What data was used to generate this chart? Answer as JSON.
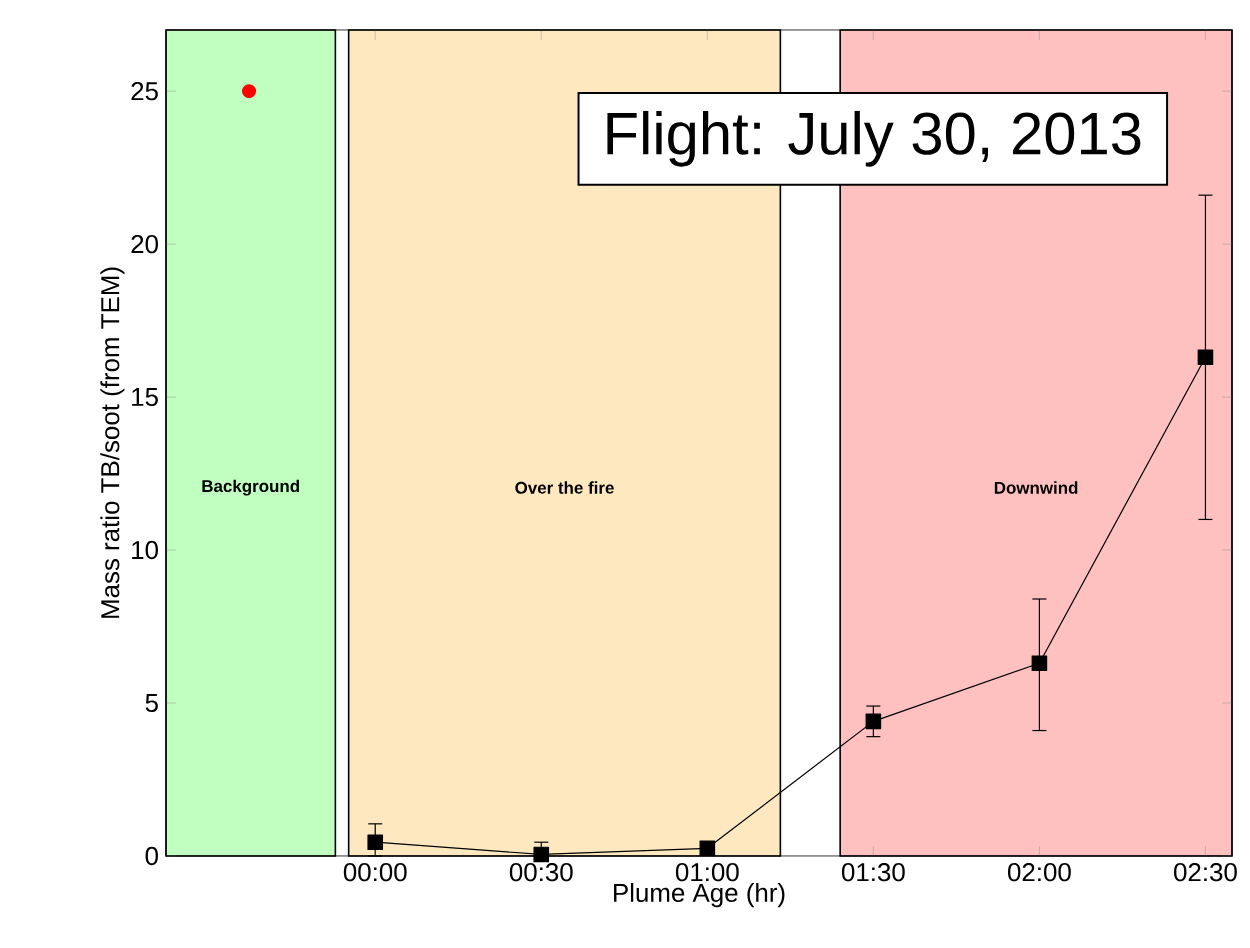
{
  "chart_data": {
    "type": "line",
    "xlabel": "Plume Age (hr)",
    "ylabel": "Mass ratio TB/soot (from TEM)",
    "annotations": [
      "Flight: July 30, 2013"
    ],
    "xlim": [
      -0.63,
      2.58
    ],
    "ylim": [
      0,
      27
    ],
    "xticks": [
      {
        "value": 0,
        "label": "00:00"
      },
      {
        "value": 0.5,
        "label": "00:30"
      },
      {
        "value": 1,
        "label": "01:00"
      },
      {
        "value": 1.5,
        "label": "01:30"
      },
      {
        "value": 2,
        "label": "02:00"
      },
      {
        "value": 2.5,
        "label": "02:30"
      }
    ],
    "yticks": [
      0,
      5,
      10,
      15,
      20,
      25
    ],
    "bands": [
      {
        "axis": "x",
        "from": -0.63,
        "to": -0.12,
        "label": "Background",
        "color": "#c0ffc0"
      },
      {
        "axis": "x",
        "from": -0.08,
        "to": 1.22,
        "label": "Over the fire",
        "color": "#fde8c0"
      },
      {
        "axis": "x",
        "from": 1.4,
        "to": 2.58,
        "label": "Downwind",
        "color": "#ffc0c0"
      }
    ],
    "series": [
      {
        "color": "#000000",
        "marker": "square",
        "line_style": "solid",
        "x": [
          0,
          0.5,
          1,
          1.5,
          2,
          2.5
        ],
        "values": [
          0.45,
          0.05,
          0.25,
          4.4,
          6.3,
          16.3
        ],
        "errors": [
          [
            0,
            1.05
          ],
          [
            0,
            0.45
          ],
          null,
          [
            3.9,
            4.9
          ],
          [
            4.1,
            8.4
          ],
          [
            11.0,
            21.6
          ]
        ]
      },
      {
        "type": "scatter",
        "color": "#ff0000",
        "marker": "circle",
        "x": [
          -0.38
        ],
        "values": [
          25
        ]
      }
    ],
    "grid": false
  }
}
